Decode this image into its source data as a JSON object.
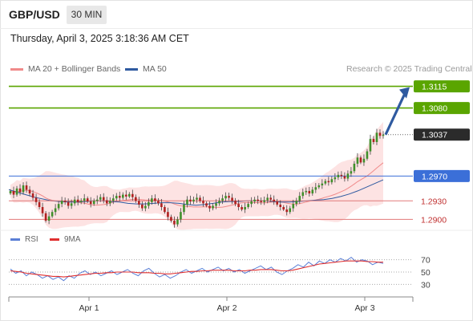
{
  "header": {
    "symbol": "GBP/USD",
    "timeframe_button": "30 MIN",
    "datetime": "Thursday, April 3, 2025 3:18:36 AM CET"
  },
  "legend": {
    "ma20": "MA 20 + Bollinger Bands",
    "ma50": "MA 50",
    "credit": "Research © 2025 Trading Central"
  },
  "rsi_legend": {
    "rsi": "RSI",
    "ma9": "9MA"
  },
  "colors": {
    "green_level": "#5aa500",
    "blue_level": "#3b6fd8",
    "red_level": "#e27a7a",
    "ma20": "#f08a8a",
    "ma50": "#2f5aa0",
    "bollinger_fill": "#fde0e0",
    "candle_up": "#3f8f2a",
    "candle_down": "#b02020",
    "arrow": "#2f5aa0",
    "rsi": "#5b7fd6",
    "rsi_ma": "#e03030",
    "current_price_box": "#2b2b2b"
  },
  "chart_data": [
    {
      "type": "candlestick",
      "title": "GBP/USD",
      "timeframe": "30 MIN",
      "x_tick_labels": [
        "Apr 1",
        "Apr 2",
        "Apr 3"
      ],
      "ylim": [
        1.2885,
        1.313
      ],
      "levels": [
        {
          "label": "1.3115",
          "value": 1.3115,
          "kind": "resistance",
          "color": "#5aa500"
        },
        {
          "label": "1.3080",
          "value": 1.308,
          "kind": "resistance",
          "color": "#5aa500"
        },
        {
          "label": "1.2970",
          "value": 1.297,
          "kind": "pivot",
          "color": "#3b6fd8"
        },
        {
          "label": "1.2930",
          "value": 1.293,
          "kind": "support",
          "color": "#e27a7a"
        },
        {
          "label": "1.2900",
          "value": 1.29,
          "kind": "support",
          "color": "#e27a7a"
        }
      ],
      "current_price": {
        "label": "1.3037",
        "value": 1.3037
      },
      "close": [
        1.2946,
        1.294,
        1.295,
        1.2944,
        1.2955,
        1.2948,
        1.2942,
        1.2935,
        1.2928,
        1.292,
        1.291,
        1.2898,
        1.2905,
        1.2912,
        1.2918,
        1.2925,
        1.293,
        1.2928,
        1.2922,
        1.2926,
        1.2932,
        1.2928,
        1.293,
        1.2934,
        1.2929,
        1.2925,
        1.293,
        1.2932,
        1.2936,
        1.2931,
        1.2926,
        1.293,
        1.2934,
        1.2938,
        1.2935,
        1.294,
        1.2937,
        1.2941,
        1.2936,
        1.293,
        1.2924,
        1.2918,
        1.2922,
        1.2928,
        1.2934,
        1.293,
        1.2926,
        1.292,
        1.2912,
        1.2904,
        1.2898,
        1.2892,
        1.29,
        1.2912,
        1.2924,
        1.2932,
        1.2929,
        1.2932,
        1.2935,
        1.293,
        1.2926,
        1.2922,
        1.2918,
        1.2922,
        1.2926,
        1.293,
        1.2934,
        1.2938,
        1.2935,
        1.293,
        1.2925,
        1.292,
        1.2916,
        1.292,
        1.2925,
        1.2929,
        1.2932,
        1.293,
        1.2928,
        1.2931,
        1.2935,
        1.2932,
        1.2929,
        1.2924,
        1.292,
        1.2916,
        1.2912,
        1.2918,
        1.2925,
        1.293,
        1.2938,
        1.2944,
        1.2946,
        1.2942,
        1.2948,
        1.2952,
        1.2955,
        1.2958,
        1.2962,
        1.296,
        1.2965,
        1.2968,
        1.2972,
        1.297,
        1.2966,
        1.2974,
        1.2978,
        1.299,
        1.3,
        1.2992,
        1.2998,
        1.301,
        1.303,
        1.3025,
        1.304,
        1.3035,
        1.3037
      ],
      "ma50": [
        1.2948,
        1.2944,
        1.294,
        1.2936,
        1.2933,
        1.293,
        1.2929,
        1.2928,
        1.2928,
        1.2929,
        1.293,
        1.293,
        1.2929,
        1.2928,
        1.2926,
        1.2925,
        1.2925,
        1.2926,
        1.2927,
        1.2927,
        1.2926,
        1.2924,
        1.2923,
        1.2924,
        1.2926,
        1.2928,
        1.2929,
        1.2929,
        1.293,
        1.293,
        1.293,
        1.2929,
        1.2928,
        1.2928,
        1.2929,
        1.293,
        1.2931,
        1.2932,
        1.2934,
        1.2937,
        1.2941,
        1.2946,
        1.2952,
        1.2958,
        1.2964
      ],
      "rsi": {
        "levels": [
          70,
          50,
          30
        ],
        "rsi": [
          55,
          48,
          52,
          44,
          50,
          46,
          40,
          44,
          38,
          42,
          36,
          44,
          40,
          48,
          52,
          46,
          50,
          44,
          48,
          52,
          46,
          50,
          54,
          48,
          44,
          52,
          56,
          48,
          42,
          46,
          40,
          44,
          50,
          54,
          48,
          52,
          56,
          50,
          54,
          58,
          52,
          56,
          50,
          54,
          48,
          52,
          56,
          60,
          54,
          58,
          50,
          46,
          52,
          56,
          62,
          58,
          66,
          60,
          68,
          64,
          70,
          66,
          72,
          68,
          74,
          66,
          70,
          68,
          62,
          66,
          64
        ],
        "ma9": [
          52,
          51,
          50,
          48,
          47,
          46,
          45,
          44,
          43,
          43,
          42,
          43,
          44,
          45,
          46,
          47,
          48,
          48,
          49,
          49,
          50,
          50,
          50,
          50,
          49,
          49,
          49,
          48,
          48,
          47,
          47,
          48,
          49,
          50,
          51,
          51,
          52,
          52,
          53,
          53,
          53,
          53,
          52,
          52,
          52,
          53,
          53,
          54,
          54,
          54,
          53,
          52,
          52,
          53,
          55,
          57,
          59,
          61,
          63,
          64,
          65,
          66,
          67,
          68,
          68,
          68,
          68,
          67,
          67,
          66,
          66
        ]
      }
    }
  ]
}
